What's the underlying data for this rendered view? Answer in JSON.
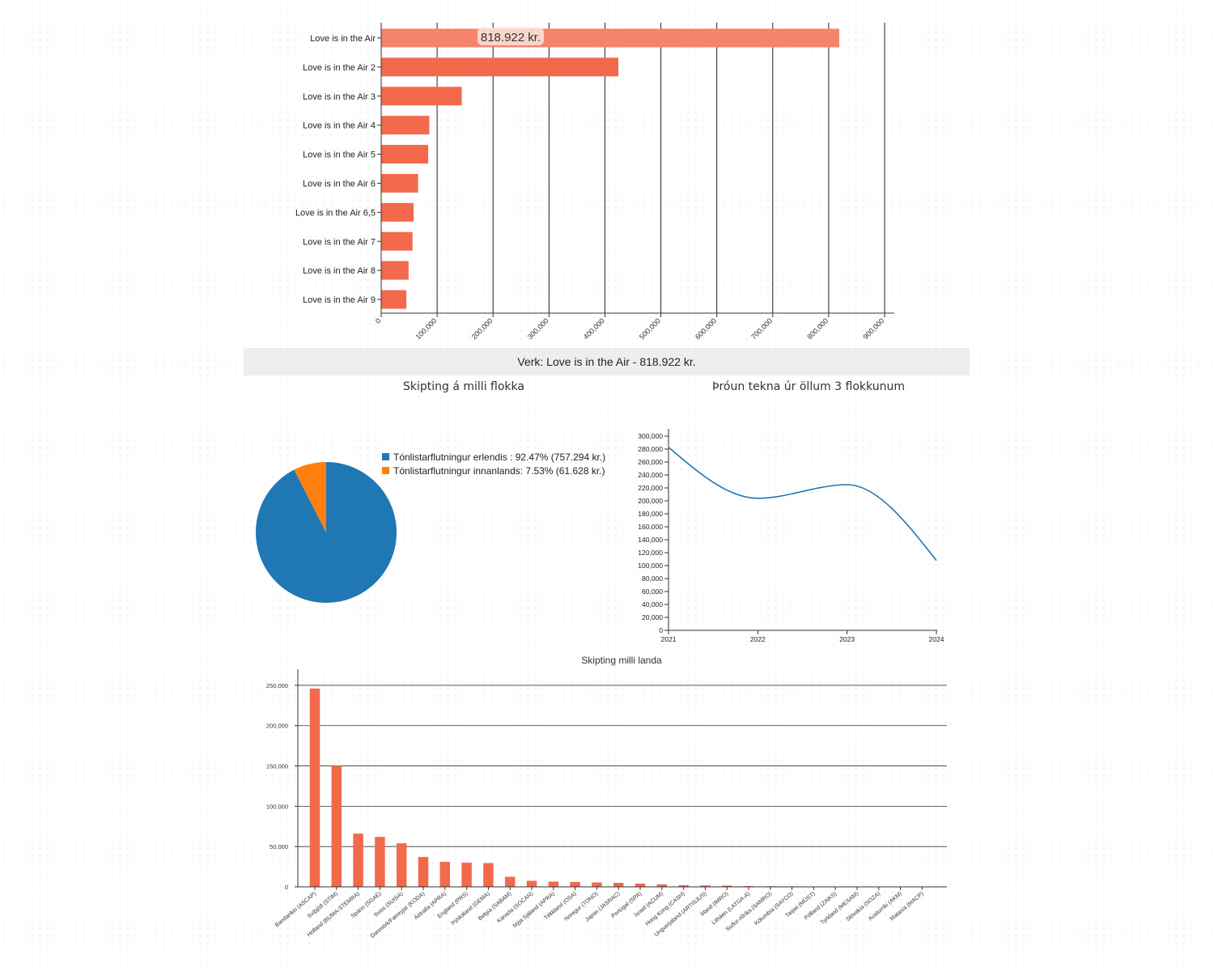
{
  "top_bar_chart": {
    "tooltip": "818.922 kr."
  },
  "verk_banner": "Verk: Love is in the Air - 818.922 kr.",
  "pie_title": "Skipting á milli flokka",
  "line_title": "Þróun tekna úr öllum 3 flokkunum",
  "country_title": "Skipting milli landa",
  "colors": {
    "bar": "#f26a4b",
    "bar_highlight": "#f4846b",
    "pie_blue": "#1f77b4",
    "pie_orange": "#ff7f0e",
    "line": "#1f77b4"
  },
  "pie_legend": [
    {
      "label": "Tónlistarflutningur erlendis : 92.47% (757.294 kr.)",
      "color": "#1f77b4"
    },
    {
      "label": "Tónlistarflutningur innanlands: 7.53% (61.628 kr.)",
      "color": "#ff7f0e"
    }
  ],
  "chart_data": [
    {
      "type": "bar",
      "orientation": "horizontal",
      "categories": [
        "Love is in the Air",
        "Love is in the Air 2",
        "Love is in the Air 3",
        "Love is in the Air 4",
        "Love is in the Air 5",
        "Love is in the Air 6",
        "Love is in the Air 6,5",
        "Love is in the Air 7",
        "Love is in the Air 8",
        "Love is in the Air 9"
      ],
      "values": [
        818922,
        424000,
        144000,
        86000,
        84000,
        66000,
        58000,
        56000,
        49000,
        45000
      ],
      "xlim": [
        0,
        900000
      ],
      "xticks": [
        "0",
        "100,000",
        "200,000",
        "300,000",
        "400,000",
        "500,000",
        "600,000",
        "700,000",
        "800,000",
        "900,000"
      ],
      "grid": "vertical"
    },
    {
      "type": "pie",
      "title": "Skipting á milli flokka",
      "slices": [
        {
          "label": "Tónlistarflutningur erlendis",
          "percent": 92.47,
          "value": 757294
        },
        {
          "label": "Tónlistarflutningur innanlands",
          "percent": 7.53,
          "value": 61628
        }
      ]
    },
    {
      "type": "line",
      "title": "Þróun tekna úr öllum 3 flokkunum",
      "x": [
        "2021",
        "2022",
        "2023",
        "2024"
      ],
      "values": [
        283000,
        204000,
        225000,
        108000
      ],
      "ylim": [
        0,
        300000
      ],
      "yticks": [
        "0",
        "20,000",
        "40,000",
        "60,000",
        "80,000",
        "100,000",
        "120,000",
        "140,000",
        "160,000",
        "180,000",
        "200,000",
        "220,000",
        "240,000",
        "260,000",
        "280,000",
        "300,000"
      ],
      "curve": "smooth"
    },
    {
      "type": "bar",
      "title": "Skipting milli landa",
      "categories": [
        "Bandaríkin (ASCAP)",
        "Svíþjóð (STIM)",
        "Holland (BUMA-STEMRA)",
        "Spánn (SGAE)",
        "Sviss (SUISA)",
        "Danmörk/Færeyjar (KODA)",
        "Ástralía (APRA)",
        "England (PRS)",
        "Þýskaland (GEMA)",
        "Belgía (SABAM)",
        "Kanada (SOCAN)",
        "Nýja Sjáland (APRA)",
        "Tékkland (OSA)",
        "Noregur (TONO)",
        "Japan (JASRAC)",
        "Portúgal (SPA)",
        "Ísrael (ACUM)",
        "Hong Kong (CASH)",
        "Ungverjaland (ARTISJUS)",
        "Írland (IMRO)",
        "Litháen (LATGA-A)",
        "Suður-Afríka (SAMRO)",
        "Kólumbía (SAYCO)",
        "Taípei (MÜST)",
        "Pólland (ZAiKS)",
        "Tyrkland (MESAM)",
        "Slóvakía (SOZA)",
        "Austurríki (AKM)",
        "Malasía (MACP)"
      ],
      "values": [
        246000,
        150000,
        66000,
        62000,
        54000,
        37000,
        31000,
        30000,
        29500,
        12500,
        7500,
        6500,
        6000,
        5500,
        5000,
        4000,
        3000,
        2000,
        1800,
        1500,
        1000,
        800,
        600,
        500,
        400,
        300,
        200,
        150,
        100
      ],
      "ylim": [
        0,
        270000
      ],
      "yticks": [
        "0",
        "50,000",
        "100,000",
        "150,000",
        "200,000",
        "250,000"
      ],
      "grid": "horizontal"
    }
  ]
}
